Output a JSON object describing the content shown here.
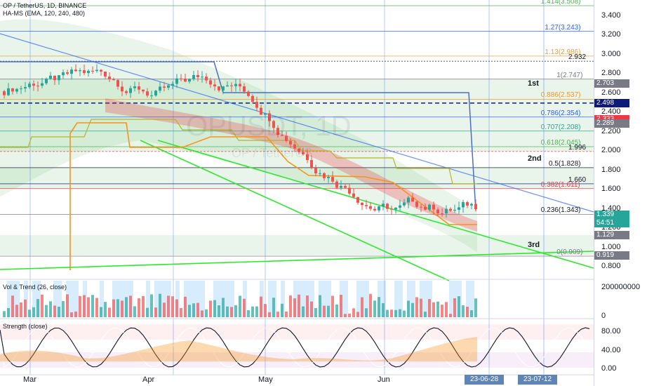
{
  "header": {
    "symbol_line": "OP / TetherUS, 1D, BINANCE",
    "indicator_line": "HA-MS (EMA, 120, 240, 480)"
  },
  "watermark": {
    "symbol": "OPUSDT, 1D",
    "name": "OP / TetherUS"
  },
  "panes": {
    "volume_label": "Vol & Trend (26, close)",
    "strength_label": "Strength (close)"
  },
  "price_axis": {
    "ticks": [
      "3.400",
      "3.200",
      "3.000",
      "2.800",
      "2.600",
      "2.400",
      "2.200",
      "2.000",
      "1.800",
      "1.600",
      "1.400",
      "1.200",
      "1.000",
      "0.800"
    ],
    "badges": [
      {
        "value": "2.703",
        "color": "#787b86",
        "text": "#ffffff"
      },
      {
        "value": "2.498",
        "color": "#0d1a7a",
        "text": "#ffffff"
      },
      {
        "value": "2.333",
        "color": "#f23645",
        "text": "#ffffff"
      },
      {
        "value": "2.289",
        "color": "#787b86",
        "text": "#ffffff"
      },
      {
        "value": "1.339",
        "color": "#26a69a",
        "text": "#ffffff"
      },
      {
        "value": "54:51",
        "color": "#26a69a",
        "text": "#ffffff"
      },
      {
        "value": "1.129",
        "color": "#787b86",
        "text": "#ffffff"
      },
      {
        "value": "0.919",
        "color": "#787b86",
        "text": "#ffffff"
      }
    ]
  },
  "fib_labels": [
    {
      "text": "1.414(3.508)",
      "color": "#4caf50"
    },
    {
      "text": "1.27(3.243)",
      "color": "#2962ff"
    },
    {
      "text": "1.13(2.986)",
      "color": "#e0a040"
    },
    {
      "text": "2.932",
      "color": "#131722"
    },
    {
      "text": "1(2.747)",
      "color": "#787b86"
    },
    {
      "text": "0.886(2.537)",
      "color": "#f7931a"
    },
    {
      "text": "0.786(2.354)",
      "color": "#2962ff"
    },
    {
      "text": "0.707(2.208)",
      "color": "#26a69a"
    },
    {
      "text": "0.618(2.045)",
      "color": "#4caf50"
    },
    {
      "text": "1.996",
      "color": "#131722"
    },
    {
      "text": "0.5(1.828)",
      "color": "#131722"
    },
    {
      "text": "1.660",
      "color": "#131722"
    },
    {
      "text": "0.382(1.611)",
      "color": "#f23645"
    },
    {
      "text": "0.236(1.343)",
      "color": "#131722"
    },
    {
      "text": "0(0.909)",
      "color": "#787b86"
    }
  ],
  "zone_labels": [
    "1st",
    "2nd",
    "3rd"
  ],
  "volume_axis": {
    "ticks": [
      "200000000",
      "0"
    ]
  },
  "strength_axis": {
    "ticks": [
      "80.00",
      "40.00",
      "0.00"
    ]
  },
  "time_axis": {
    "months": [
      "Mar",
      "Apr",
      "May",
      "Jun"
    ],
    "date_badges": [
      "23-06-28",
      "23-07-12"
    ]
  }
}
